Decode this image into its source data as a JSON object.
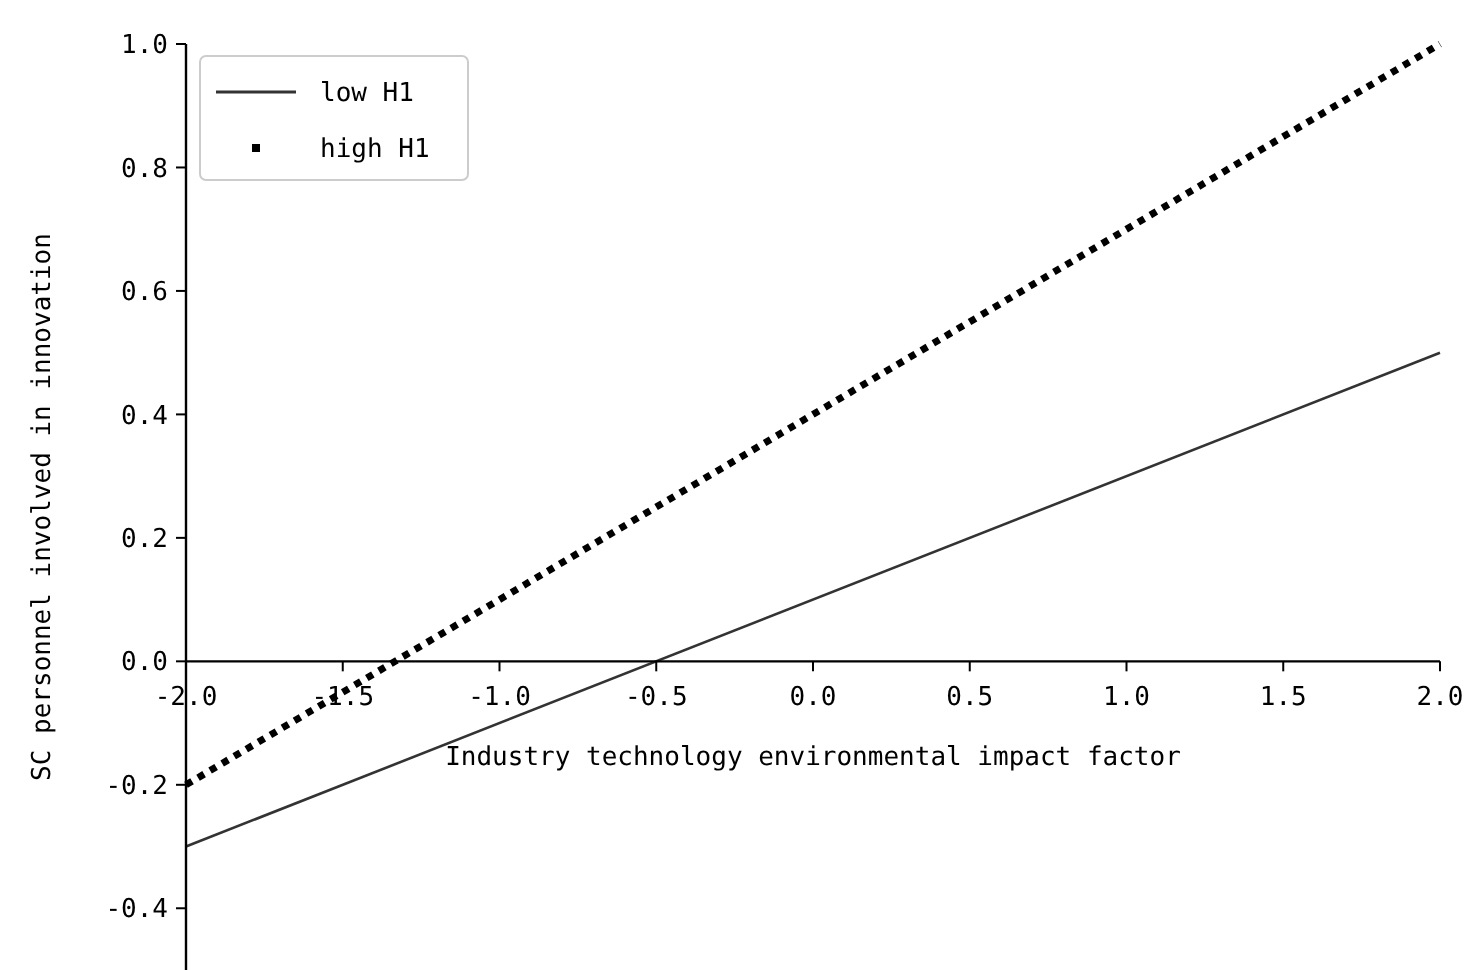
{
  "chart_data": {
    "type": "line",
    "xlabel": "Industry technology environmental impact factor",
    "ylabel": "SC personnel involved in innovation",
    "x": [
      -2,
      2
    ],
    "series": [
      {
        "name": "low H1",
        "color": "#333333",
        "values": [
          -0.3,
          0.5
        ],
        "line_style": "solid"
      },
      {
        "name": "high H1",
        "color": "#000000",
        "values": [
          -0.2,
          1.0
        ],
        "line_style": "dotted"
      }
    ],
    "xlim": [
      -2,
      2
    ],
    "ylim": [
      -0.5,
      1.0
    ],
    "xticks": [
      {
        "value": -2,
        "label": "-2.0"
      },
      {
        "value": -1.5,
        "label": "-1.5"
      },
      {
        "value": -1,
        "label": "-1.0"
      },
      {
        "value": -0.5,
        "label": "-0.5"
      },
      {
        "value": 0,
        "label": "0.0"
      },
      {
        "value": 0.5,
        "label": "0.5"
      },
      {
        "value": 1,
        "label": "1.0"
      },
      {
        "value": 1.5,
        "label": "1.5"
      },
      {
        "value": 2,
        "label": "2.0"
      }
    ],
    "yticks": [
      {
        "value": -0.4,
        "label": "-0.4"
      },
      {
        "value": -0.2,
        "label": "-0.2"
      },
      {
        "value": 0,
        "label": "0.0"
      },
      {
        "value": 0.2,
        "label": "0.2"
      },
      {
        "value": 0.4,
        "label": "0.4"
      },
      {
        "value": 0.6,
        "label": "0.6"
      },
      {
        "value": 0.8,
        "label": "0.8"
      },
      {
        "value": 1,
        "label": "1.0"
      }
    ],
    "legend": "top left",
    "grid": false
  }
}
